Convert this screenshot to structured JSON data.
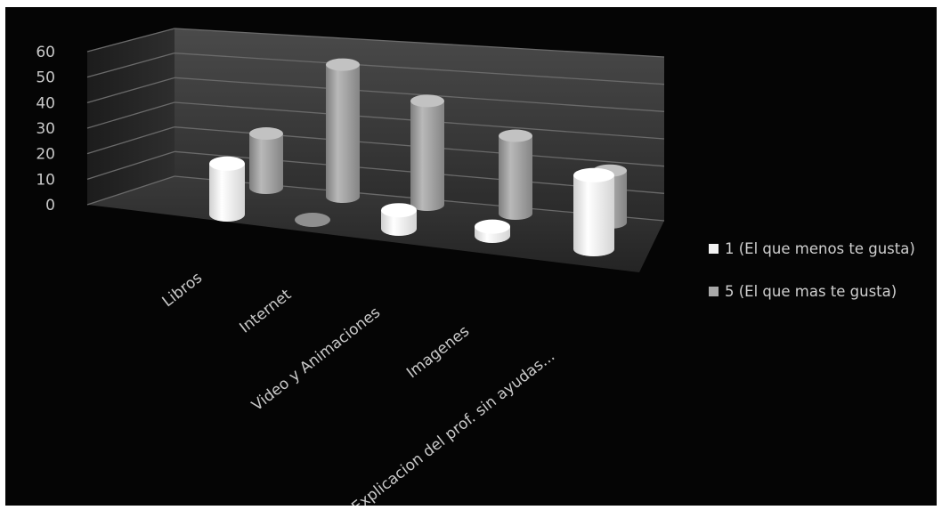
{
  "chart_data": {
    "type": "bar",
    "style": "3d-cylinder",
    "categories": [
      "Libros",
      "Internet",
      "Video y Animaciones",
      "Imagenes",
      "Explicacion del prof. sin ayudas..."
    ],
    "series": [
      {
        "name": "1 (El que menos te gusta)",
        "values": [
          22,
          0,
          8,
          4,
          32
        ],
        "color": "#f2f2f2"
      },
      {
        "name": "5 (El que mas te gusta)",
        "values": [
          23,
          56,
          44,
          33,
          22
        ],
        "color": "#a9a9a9"
      }
    ],
    "ylim": [
      0,
      60
    ],
    "yticks": [
      0,
      10,
      20,
      30,
      40,
      50,
      60
    ],
    "grid": true,
    "legend_position": "right",
    "background": "#050505"
  }
}
